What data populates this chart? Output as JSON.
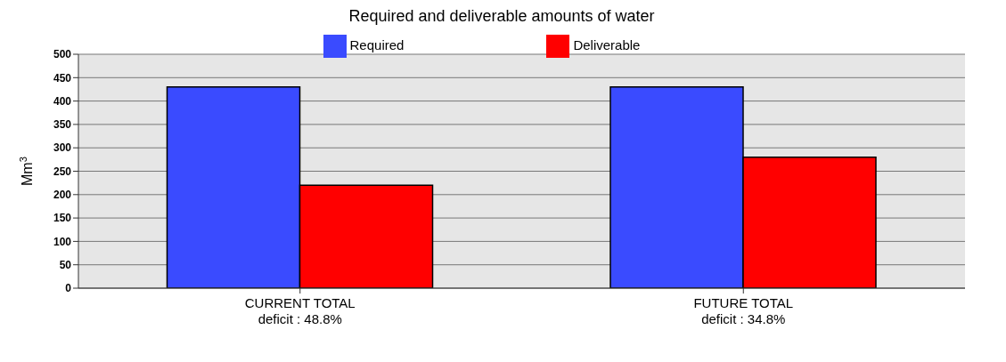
{
  "chart_data": {
    "type": "bar",
    "title": "Required and deliverable amounts of water",
    "ylabel": "Mm$^{3}$",
    "categories": [
      "CURRENT TOTAL\ndeficit : 48.8%",
      "FUTURE TOTAL\ndeficit : 34.8%"
    ],
    "series": [
      {
        "name": "Required",
        "color": "#3a4bff",
        "values": [
          430,
          430
        ]
      },
      {
        "name": "Deliverable",
        "color": "#ff0000",
        "values": [
          220,
          280
        ]
      }
    ],
    "ylim": [
      0,
      500
    ],
    "yticks": [
      0,
      50,
      100,
      150,
      200,
      250,
      300,
      350,
      400,
      450,
      500
    ],
    "grid": "y",
    "legend": "top"
  }
}
